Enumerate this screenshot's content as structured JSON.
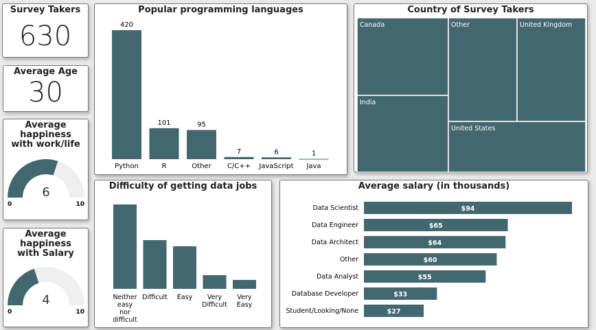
{
  "colors": {
    "bar": "#43676f",
    "gauge_bg": "#efefef",
    "label": "#222222"
  },
  "cards": [
    {
      "title": "Survey Takers",
      "value": "630"
    },
    {
      "title": "Average Age",
      "value": "30"
    }
  ],
  "gauges": [
    {
      "title": "Average happiness with work/life",
      "value": 6,
      "value_label": "6",
      "min": 0,
      "max": 10,
      "min_label": "0",
      "max_label": "10"
    },
    {
      "title": "Average happiness with Salary",
      "value": 4,
      "value_label": "4",
      "min": 0,
      "max": 10,
      "min_label": "0",
      "max_label": "10"
    }
  ],
  "chart_data": [
    {
      "type": "bar",
      "title": "Popular programming languages",
      "categories": [
        "Python",
        "R",
        "Other",
        "C/C++",
        "JavaScript",
        "Java"
      ],
      "values": [
        420,
        101,
        95,
        7,
        6,
        1
      ],
      "data_labels": [
        "420",
        "101",
        "95",
        "7",
        "6",
        "1"
      ]
    },
    {
      "type": "treemap",
      "title": "Country of Survey Takers",
      "categories": [
        "Canada",
        "India",
        "Other",
        "United Kingdom",
        "United States"
      ]
    },
    {
      "type": "bar",
      "title": "Difficulty of getting data jobs",
      "categories": [
        "Neither easy nor difficult",
        "Difficult",
        "Easy",
        "Very Difficult",
        "Very Easy"
      ],
      "values": [
        123,
        71,
        62,
        20,
        13
      ]
    },
    {
      "type": "bar",
      "orientation": "horizontal",
      "title": "Average salary (in thousands)",
      "categories": [
        "Data Scientist",
        "Data Engineer",
        "Data Architect",
        "Other",
        "Data Analyst",
        "Database Developer",
        "Student/Looking/None"
      ],
      "values": [
        94,
        65,
        64,
        60,
        55,
        33,
        27
      ],
      "data_labels": [
        "$94",
        "$65",
        "$64",
        "$60",
        "$55",
        "$33",
        "$27"
      ]
    }
  ]
}
